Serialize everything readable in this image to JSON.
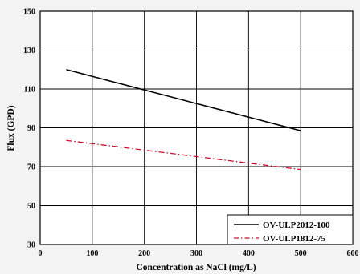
{
  "chart_data": {
    "type": "line",
    "xlabel": "Concentration as NaCl (mg/L)",
    "ylabel": "Flux (GPD)",
    "xlim": [
      0,
      600
    ],
    "ylim": [
      30,
      150
    ],
    "x_ticks": [
      "0",
      "100",
      "200",
      "300",
      "400",
      "500",
      "600"
    ],
    "y_ticks": [
      "30",
      "50",
      "70",
      "90",
      "110",
      "130",
      "150"
    ],
    "grid": true,
    "legend_position": "bottom-right",
    "series": [
      {
        "name": "OV-ULP2012-100",
        "color": "#000000",
        "line_style": "solid",
        "x": [
          50,
          500
        ],
        "y": [
          120,
          88.5
        ]
      },
      {
        "name": "OV-ULP1812-75",
        "color": "#c8102e",
        "line_style": "dash-dot",
        "x": [
          50,
          500
        ],
        "y": [
          83.5,
          68.5
        ]
      }
    ]
  }
}
